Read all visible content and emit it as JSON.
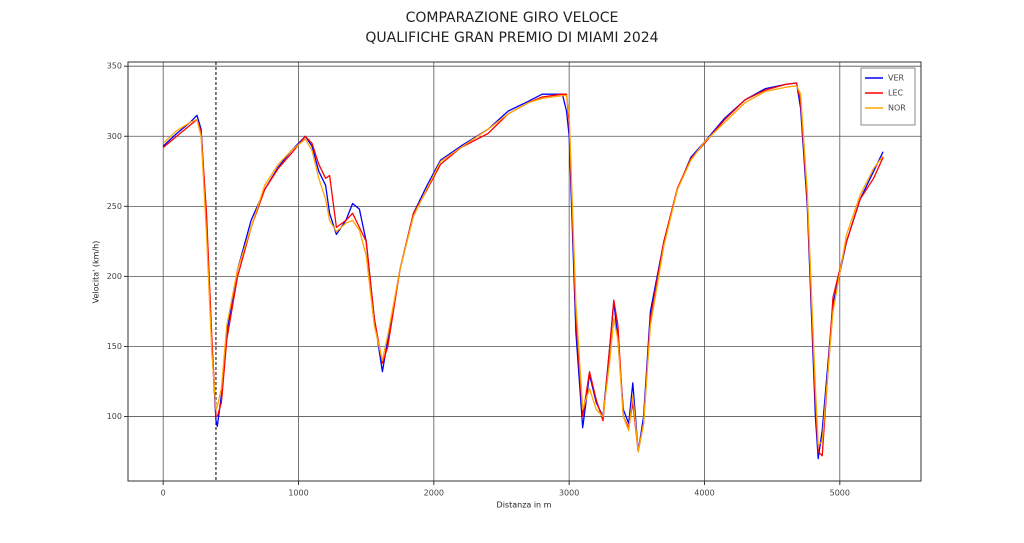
{
  "chart_data": {
    "type": "line",
    "title": [
      "COMPARAZIONE GIRO VELOCE",
      "QUALIFICHE GRAN PREMIO DI MIAMI 2024"
    ],
    "x_label": "Distanza in m",
    "y_label": "Velocita' (km/h)",
    "xlim": [
      -260,
      5600
    ],
    "ylim": [
      54,
      353
    ],
    "xticks": [
      0,
      1000,
      2000,
      3000,
      4000,
      5000
    ],
    "yticks": [
      100,
      150,
      200,
      250,
      300,
      350
    ],
    "grid": true,
    "legend": "upper right",
    "vline": 390,
    "x": [
      0,
      100,
      200,
      250,
      280,
      320,
      360,
      390,
      400,
      430,
      470,
      550,
      650,
      750,
      850,
      950,
      1050,
      1100,
      1150,
      1200,
      1230,
      1280,
      1350,
      1400,
      1450,
      1500,
      1560,
      1620,
      1660,
      1750,
      1850,
      1950,
      2050,
      2200,
      2400,
      2550,
      2700,
      2800,
      2950,
      2980,
      3000,
      3050,
      3100,
      3150,
      3200,
      3250,
      3300,
      3330,
      3360,
      3400,
      3440,
      3470,
      3510,
      3550,
      3600,
      3700,
      3800,
      3900,
      4000,
      4150,
      4300,
      4450,
      4600,
      4680,
      4710,
      4760,
      4820,
      4840,
      4870,
      4950,
      5050,
      5150,
      5250,
      5320
    ],
    "series": [
      {
        "name": "VER",
        "color": "#0000ff",
        "values": [
          293,
          302,
          310,
          315,
          305,
          240,
          150,
          97,
          93,
          115,
          160,
          205,
          240,
          262,
          278,
          290,
          300,
          293,
          275,
          265,
          245,
          230,
          240,
          252,
          248,
          225,
          170,
          132,
          155,
          205,
          245,
          265,
          283,
          293,
          305,
          318,
          325,
          330,
          330,
          318,
          300,
          160,
          92,
          130,
          110,
          100,
          150,
          182,
          155,
          105,
          95,
          124,
          75,
          100,
          175,
          225,
          262,
          285,
          296,
          313,
          326,
          334,
          337,
          338,
          320,
          250,
          100,
          70,
          90,
          180,
          225,
          255,
          275,
          289
        ]
      },
      {
        "name": "LEC",
        "color": "#ff0000",
        "values": [
          292,
          300,
          308,
          312,
          303,
          245,
          155,
          100,
          100,
          110,
          155,
          200,
          235,
          262,
          277,
          288,
          300,
          295,
          280,
          270,
          272,
          235,
          240,
          245,
          235,
          225,
          170,
          138,
          150,
          205,
          245,
          262,
          280,
          292,
          302,
          316,
          324,
          328,
          330,
          330,
          310,
          170,
          100,
          132,
          112,
          97,
          150,
          183,
          165,
          100,
          92,
          110,
          75,
          95,
          170,
          225,
          263,
          284,
          295,
          312,
          326,
          333,
          337,
          338,
          325,
          255,
          110,
          75,
          72,
          185,
          225,
          255,
          270,
          285
        ]
      },
      {
        "name": "NOR",
        "color": "#ffa500",
        "values": [
          295,
          304,
          310,
          312,
          300,
          230,
          145,
          105,
          107,
          120,
          165,
          205,
          235,
          265,
          280,
          290,
          298,
          290,
          270,
          255,
          240,
          232,
          238,
          240,
          233,
          215,
          165,
          140,
          158,
          205,
          243,
          263,
          282,
          292,
          305,
          316,
          324,
          327,
          329,
          329,
          315,
          180,
          105,
          120,
          105,
          100,
          140,
          170,
          155,
          100,
          90,
          115,
          75,
          95,
          165,
          222,
          262,
          283,
          296,
          310,
          324,
          332,
          335,
          336,
          330,
          260,
          120,
          80,
          82,
          175,
          230,
          258,
          277,
          286
        ]
      }
    ]
  }
}
